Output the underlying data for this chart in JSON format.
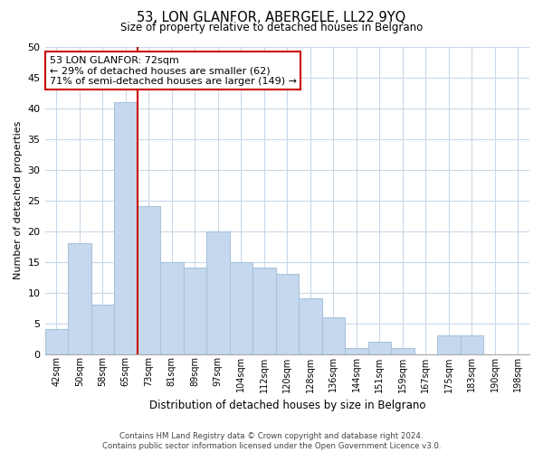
{
  "title": "53, LON GLANFOR, ABERGELE, LL22 9YQ",
  "subtitle": "Size of property relative to detached houses in Belgrano",
  "xlabel": "Distribution of detached houses by size in Belgrano",
  "ylabel": "Number of detached properties",
  "bar_labels": [
    "42sqm",
    "50sqm",
    "58sqm",
    "65sqm",
    "73sqm",
    "81sqm",
    "89sqm",
    "97sqm",
    "104sqm",
    "112sqm",
    "120sqm",
    "128sqm",
    "136sqm",
    "144sqm",
    "151sqm",
    "159sqm",
    "167sqm",
    "175sqm",
    "183sqm",
    "190sqm",
    "198sqm"
  ],
  "bar_values": [
    4,
    18,
    8,
    41,
    24,
    15,
    14,
    20,
    15,
    14,
    13,
    9,
    6,
    1,
    2,
    1,
    0,
    3,
    3,
    0,
    0
  ],
  "bar_color": "#c5d8ed",
  "bar_edge_color": "#a8c4dc",
  "highlight_line_color": "#cc0000",
  "annotation_title": "53 LON GLANFOR: 72sqm",
  "annotation_line1": "← 29% of detached houses are smaller (62)",
  "annotation_line2": "71% of semi-detached houses are larger (149) →",
  "annotation_box_color": "#ffffff",
  "annotation_box_edge": "#cc0000",
  "ylim": [
    0,
    50
  ],
  "yticks": [
    0,
    5,
    10,
    15,
    20,
    25,
    30,
    35,
    40,
    45,
    50
  ],
  "footer_line1": "Contains HM Land Registry data © Crown copyright and database right 2024.",
  "footer_line2": "Contains public sector information licensed under the Open Government Licence v3.0.",
  "background_color": "#ffffff",
  "grid_color": "#c8d8e8"
}
